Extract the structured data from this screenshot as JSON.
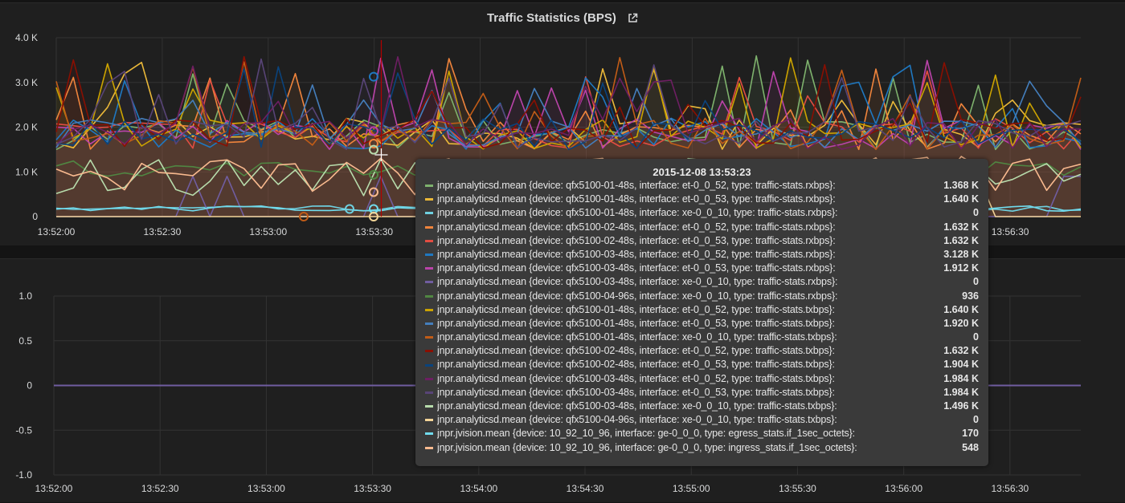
{
  "top_panel": {
    "title": "Traffic Statistics (BPS)",
    "link_icon": "external-link-icon"
  },
  "chart_data": [
    {
      "type": "line",
      "title": "Traffic Statistics (BPS)",
      "ylim": [
        0,
        4000
      ],
      "y_tick_labels": [
        "0",
        "1.0 K",
        "2.0 K",
        "3.0 K",
        "4.0 K"
      ],
      "x_tick_labels": [
        "13:52:00",
        "13:52:30",
        "13:53:00",
        "13:53:30",
        "13:54:00",
        "13:54:30",
        "13:55:00",
        "13:55:30",
        "13:56:00",
        "13:56:30"
      ],
      "x_start": "13:52:00",
      "x_end": "13:56:50",
      "grid": true,
      "cursor_time": "13:53:32",
      "series_colors": [
        "#7eb26d",
        "#eab839",
        "#6ed0e0",
        "#ef843c",
        "#e24d42",
        "#1f78c1",
        "#ba43a9",
        "#705da0",
        "#508642",
        "#cca300",
        "#447ebc",
        "#c15c17",
        "#890f02",
        "#0a437c",
        "#6d1f62",
        "#584477",
        "#b7dbab",
        "#f4d598",
        "#70dbed",
        "#f9ba8f"
      ]
    },
    {
      "type": "line",
      "ylim": [
        -1.0,
        1.0
      ],
      "y_tick_labels": [
        "-1.0",
        "-0.5",
        "0",
        "0.5",
        "1.0"
      ],
      "x_tick_labels": [
        "13:52:00",
        "13:52:30",
        "13:53:00",
        "13:53:30",
        "13:54:00",
        "13:54:30",
        "13:55:00",
        "13:55:30",
        "13:56:00",
        "13:56:30"
      ],
      "grid": true,
      "series": [
        {
          "color": "#705da0",
          "x": [
            "13:52:00",
            "13:56:50"
          ],
          "values": [
            0,
            0
          ]
        }
      ]
    }
  ],
  "tooltip": {
    "time": "2015-12-08 13:53:23",
    "rows": [
      {
        "color": "#7eb26d",
        "label": "jnpr.analyticsd.mean {device: qfx5100-01-48s, interface: et-0_0_52, type: traffic-stats.rxbps}:",
        "value": "1.368 K"
      },
      {
        "color": "#eab839",
        "label": "jnpr.analyticsd.mean {device: qfx5100-01-48s, interface: et-0_0_53, type: traffic-stats.rxbps}:",
        "value": "1.640 K"
      },
      {
        "color": "#6ed0e0",
        "label": "jnpr.analyticsd.mean {device: qfx5100-01-48s, interface: xe-0_0_10, type: traffic-stats.rxbps}:",
        "value": "0"
      },
      {
        "color": "#ef843c",
        "label": "jnpr.analyticsd.mean {device: qfx5100-02-48s, interface: et-0_0_52, type: traffic-stats.rxbps}:",
        "value": "1.632 K"
      },
      {
        "color": "#e24d42",
        "label": "jnpr.analyticsd.mean {device: qfx5100-02-48s, interface: et-0_0_53, type: traffic-stats.rxbps}:",
        "value": "1.632 K"
      },
      {
        "color": "#1f78c1",
        "label": "jnpr.analyticsd.mean {device: qfx5100-03-48s, interface: et-0_0_52, type: traffic-stats.rxbps}:",
        "value": "3.128 K"
      },
      {
        "color": "#ba43a9",
        "label": "jnpr.analyticsd.mean {device: qfx5100-03-48s, interface: et-0_0_53, type: traffic-stats.rxbps}:",
        "value": "1.912 K"
      },
      {
        "color": "#705da0",
        "label": "jnpr.analyticsd.mean {device: qfx5100-03-48s, interface: xe-0_0_10, type: traffic-stats.rxbps}:",
        "value": "0"
      },
      {
        "color": "#508642",
        "label": "jnpr.analyticsd.mean {device: qfx5100-04-96s, interface: xe-0_0_10, type: traffic-stats.rxbps}:",
        "value": "936"
      },
      {
        "color": "#cca300",
        "label": "jnpr.analyticsd.mean {device: qfx5100-01-48s, interface: et-0_0_52, type: traffic-stats.txbps}:",
        "value": "1.640 K"
      },
      {
        "color": "#447ebc",
        "label": "jnpr.analyticsd.mean {device: qfx5100-01-48s, interface: et-0_0_53, type: traffic-stats.txbps}:",
        "value": "1.920 K"
      },
      {
        "color": "#c15c17",
        "label": "jnpr.analyticsd.mean {device: qfx5100-01-48s, interface: xe-0_0_10, type: traffic-stats.txbps}:",
        "value": "0"
      },
      {
        "color": "#890f02",
        "label": "jnpr.analyticsd.mean {device: qfx5100-02-48s, interface: et-0_0_52, type: traffic-stats.txbps}:",
        "value": "1.632 K"
      },
      {
        "color": "#0a437c",
        "label": "jnpr.analyticsd.mean {device: qfx5100-02-48s, interface: et-0_0_53, type: traffic-stats.txbps}:",
        "value": "1.904 K"
      },
      {
        "color": "#6d1f62",
        "label": "jnpr.analyticsd.mean {device: qfx5100-03-48s, interface: et-0_0_52, type: traffic-stats.txbps}:",
        "value": "1.984 K"
      },
      {
        "color": "#584477",
        "label": "jnpr.analyticsd.mean {device: qfx5100-03-48s, interface: et-0_0_53, type: traffic-stats.txbps}:",
        "value": "1.984 K"
      },
      {
        "color": "#b7dbab",
        "label": "jnpr.analyticsd.mean {device: qfx5100-03-48s, interface: xe-0_0_10, type: traffic-stats.txbps}:",
        "value": "1.496 K"
      },
      {
        "color": "#f4d598",
        "label": "jnpr.analyticsd.mean {device: qfx5100-04-96s, interface: xe-0_0_10, type: traffic-stats.txbps}:",
        "value": "0"
      },
      {
        "color": "#70dbed",
        "label": "jnpr.jvision.mean {device: 10_92_10_96, interface: ge-0_0_0, type: egress_stats.if_1sec_octets}:",
        "value": "170"
      },
      {
        "color": "#f9ba8f",
        "label": "jnpr.jvision.mean {device: 10_92_10_96, interface: ge-0_0_0, type: ingress_stats.if_1sec_octets}:",
        "value": "548"
      }
    ]
  }
}
